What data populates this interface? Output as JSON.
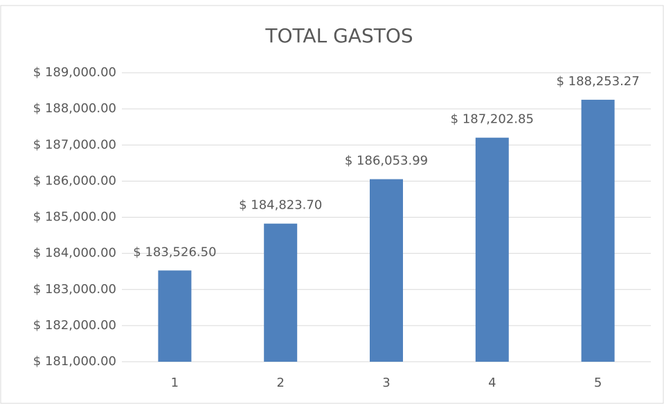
{
  "chart_data": {
    "type": "bar",
    "title": "TOTAL GASTOS",
    "categories": [
      "1",
      "2",
      "3",
      "4",
      "5"
    ],
    "values": [
      183526.5,
      184823.7,
      186053.99,
      187202.85,
      188253.27
    ],
    "value_labels": [
      "$ 183,526.50",
      "$ 184,823.70",
      "$ 186,053.99",
      "$ 187,202.85",
      "$ 188,253.27"
    ],
    "color": "#4f81bd",
    "ylim": [
      181000,
      189000
    ],
    "yticks": [
      {
        "value": 181000,
        "label": "$ 181,000.00"
      },
      {
        "value": 182000,
        "label": "$ 182,000.00"
      },
      {
        "value": 183000,
        "label": "$ 183,000.00"
      },
      {
        "value": 184000,
        "label": "$ 184,000.00"
      },
      {
        "value": 185000,
        "label": "$ 185,000.00"
      },
      {
        "value": 186000,
        "label": "$ 186,000.00"
      },
      {
        "value": 187000,
        "label": "$ 187,000.00"
      },
      {
        "value": 188000,
        "label": "$ 188,000.00"
      },
      {
        "value": 189000,
        "label": "$ 189,000.00"
      }
    ],
    "grid": true
  }
}
